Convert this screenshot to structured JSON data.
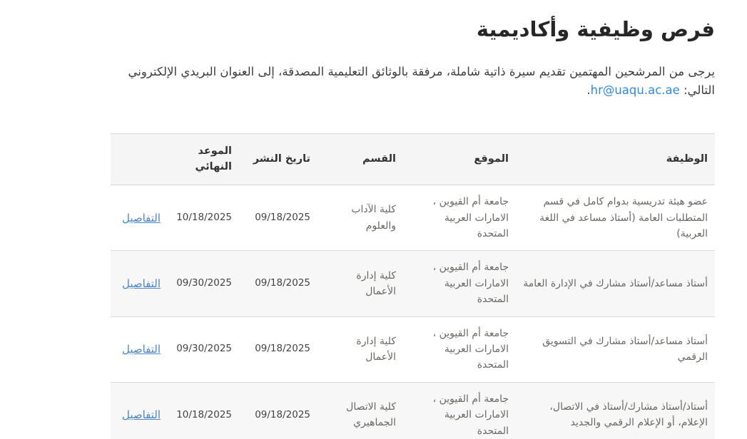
{
  "page": {
    "title": "فرص وظيفية وأكاديمية",
    "intro": {
      "text_before_link": "يرجى من المرشحين المهتمين تقديم سيرة ذاتية شاملة، مرفقة بالوثائق التعليمية المصدقة، إلى العنوان البريدي الإلكتروني التالي: ",
      "email_link": "hr@uaqu.ac.ae",
      "text_after_link": "."
    }
  },
  "table": {
    "headers": {
      "job": "الوظيفة",
      "location": "الموقع",
      "department": "القسم",
      "published": "تاريخ النشر",
      "deadline": "الموعد النهائي",
      "details": ""
    },
    "rows": [
      {
        "job": "عضو هيئة تدريسية بدوام كامل في قسم المتطلبات العامة (أستاذ مساعد في اللغة العربية)",
        "location": "جامعة أم القيوين ، الامارات العربية المتحدة",
        "department": "كلية الآداب والعلوم",
        "published": "09/18/2025",
        "deadline": "10/18/2025",
        "details": "التفاصيل"
      },
      {
        "job": "أستاذ مساعد/أستاذ مشارك في الإدارة العامة",
        "location": "جامعة أم القيوين ، الامارات العربية المتحدة",
        "department": "كلية إدارة الأعمال",
        "published": "09/18/2025",
        "deadline": "09/30/2025",
        "details": "التفاصيل"
      },
      {
        "job": "أستاذ مساعد/أستاذ مشارك في التسويق الرقمي",
        "location": "جامعة أم القيوين ، الامارات العربية المتحدة",
        "department": "كلية إدارة الأعمال",
        "published": "09/18/2025",
        "deadline": "09/30/2025",
        "details": "التفاصيل"
      },
      {
        "job": "أستاذ/أستاذ مشارك/أستاذ في الاتصال، الإعلام، أو الإعلام الرقمي والجديد",
        "location": "جامعة أم القيوين ، الامارات العربية المتحدة",
        "department": "كلية الاتصال الجماهيري",
        "published": "09/18/2025",
        "deadline": "10/18/2025",
        "details": "التفاصيل"
      }
    ]
  },
  "colors": {
    "details_link": "#4a86c8",
    "email_link": "#2e8be4",
    "header_bg": "#f5f5f5",
    "row_alt_bg": "#f7f7f7",
    "table_border": "#dcdcdc",
    "title_text": "#262626",
    "body_text": "#6b6864"
  }
}
